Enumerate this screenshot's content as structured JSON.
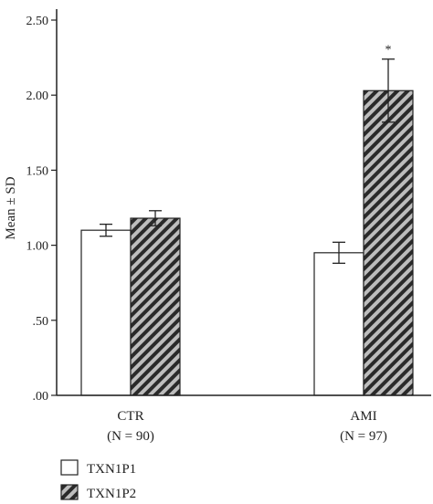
{
  "chart_data": {
    "type": "bar",
    "ylabel": "Mean ± SD",
    "ylim": [
      0,
      2.5
    ],
    "yticks": [
      ".00",
      ".50",
      "1.00",
      "1.50",
      "2.00",
      "2.50"
    ],
    "tick_values": [
      0,
      0.5,
      1.0,
      1.5,
      2.0,
      2.5
    ],
    "categories": [
      "CTR",
      "AMI"
    ],
    "category_n": [
      "(N = 90)",
      "(N = 97)"
    ],
    "series": [
      {
        "name": "TXN1P1",
        "values": [
          1.1,
          0.95
        ],
        "errors": [
          0.04,
          0.07
        ],
        "fill": "plain"
      },
      {
        "name": "TXN1P2",
        "values": [
          1.18,
          2.03
        ],
        "errors": [
          0.05,
          0.21
        ],
        "fill": "hatched"
      }
    ],
    "annotations": [
      {
        "text": "*",
        "series": 1,
        "category": 1
      }
    ],
    "grid": false,
    "legend": "bottom-left"
  },
  "colors": {
    "axis": "#222222",
    "bar_plain": "#ffffff",
    "hatch_bg": "#bdbdbd",
    "hatch_line": "#2a2a2a"
  }
}
